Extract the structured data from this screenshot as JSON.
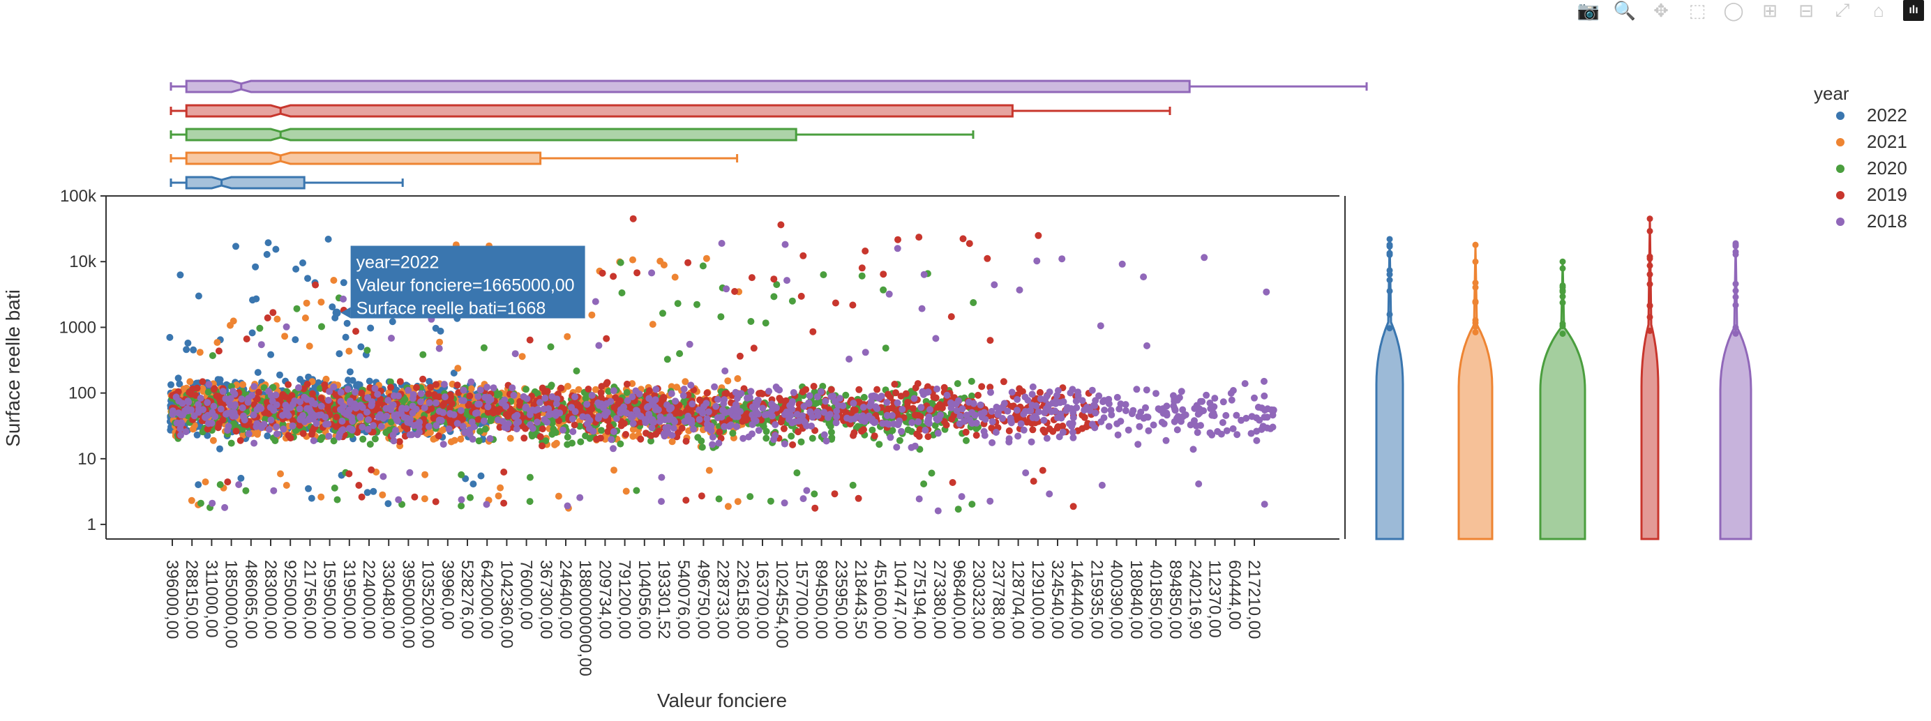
{
  "toolbar": {
    "buttons": [
      {
        "name": "camera-icon",
        "glyph": "📷"
      },
      {
        "name": "zoom-icon",
        "glyph": "🔍"
      },
      {
        "name": "pan-icon",
        "glyph": "✥"
      },
      {
        "name": "box-select-icon",
        "glyph": "⬚"
      },
      {
        "name": "lasso-select-icon",
        "glyph": "◯"
      },
      {
        "name": "zoom-in-icon",
        "glyph": "⊞"
      },
      {
        "name": "zoom-out-icon",
        "glyph": "⊟"
      },
      {
        "name": "autoscale-icon",
        "glyph": "⤢"
      },
      {
        "name": "reset-axes-icon",
        "glyph": "⌂"
      },
      {
        "name": "plotly-logo-icon",
        "glyph": "ılı"
      }
    ]
  },
  "chart_data": {
    "type": "scatter",
    "title": "",
    "xlabel": "Valeur fonciere",
    "ylabel": "Surface reelle bati",
    "y_scale": "log",
    "ylim": [
      0.6,
      100000
    ],
    "y_ticks": [
      "1",
      "10",
      "100",
      "1000",
      "10k",
      "100k"
    ],
    "x_tick_labels": [
      "396000,00",
      "288150,00",
      "311000,00",
      "1850000,00",
      "486065,00",
      "283000,00",
      "925000,00",
      "217560,00",
      "159500,00",
      "319500,00",
      "224000,00",
      "330480,00",
      "3950000,00",
      "1035200,00",
      "39960,00",
      "528276,00",
      "642000,00",
      "1042360,00",
      "76000,00",
      "367300,00",
      "246400,00",
      "1880000000,00",
      "209734,00",
      "791200,00",
      "104056,00",
      "193301,52",
      "540076,00",
      "496750,00",
      "228733,00",
      "226158,00",
      "163700,00",
      "1024554,00",
      "157700,00",
      "894500,00",
      "235950,00",
      "218443,50",
      "451600,00",
      "104747,00",
      "275194,00",
      "273380,00",
      "968400,00",
      "230323,00",
      "237788,00",
      "128704,00",
      "129100,00",
      "324540,00",
      "146440,00",
      "215935,00",
      "400390,00",
      "180840,00",
      "401850,00",
      "894850,00",
      "240216,90",
      "112370,00",
      "60444,00",
      "217210,00"
    ],
    "legend": {
      "title": "year",
      "placement": "top-right",
      "entries": [
        "2022",
        "2021",
        "2020",
        "2019",
        "2018"
      ]
    },
    "series": [
      {
        "name": "2022",
        "color": "#3a76af",
        "x_range_index": [
          0,
          16
        ],
        "box_q1_index": 1,
        "box_median_index": 3,
        "box_q3_index": 6,
        "whisker_max_index": 11,
        "y_median": 60,
        "y_max": 22000
      },
      {
        "name": "2021",
        "color": "#ee8432",
        "x_range_index": [
          0,
          29
        ],
        "box_q1_index": 1,
        "box_median_index": 6,
        "box_q3_index": 18,
        "whisker_max_index": 28,
        "y_median": 55,
        "y_max": 18000
      },
      {
        "name": "2020",
        "color": "#4a9e3e",
        "x_range_index": [
          0,
          41
        ],
        "box_q1_index": 1,
        "box_median_index": 6,
        "box_q3_index": 31,
        "whisker_max_index": 40,
        "y_median": 50,
        "y_max": 10000
      },
      {
        "name": "2019",
        "color": "#c8362d",
        "x_range_index": [
          0,
          47
        ],
        "box_q1_index": 1,
        "box_median_index": 6,
        "box_q3_index": 42,
        "whisker_max_index": 50,
        "y_median": 55,
        "y_max": 45000
      },
      {
        "name": "2018",
        "color": "#9067b9",
        "x_range_index": [
          0,
          56
        ],
        "box_q1_index": 1,
        "box_median_index": 4,
        "box_q3_index": 51,
        "whisker_max_index": 60,
        "y_median": 50,
        "y_max": 19000
      }
    ],
    "hover": {
      "lines": [
        "year=2022",
        "Valeur fonciere=1665000,00",
        "Surface reelle bati=1668"
      ],
      "y": 1668,
      "x_index": 8
    }
  }
}
